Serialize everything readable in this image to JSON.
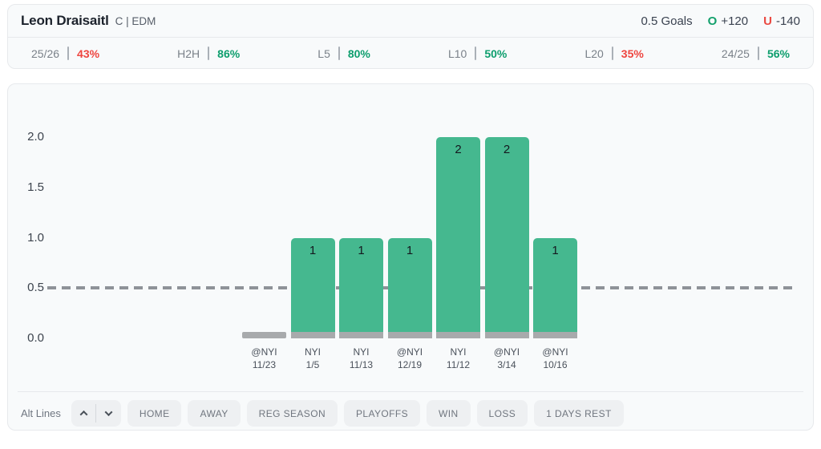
{
  "header": {
    "player": "Leon Draisaitl",
    "position_team": "C | EDM",
    "market": "0.5 Goals",
    "over_label": "O",
    "over_odds": "+120",
    "under_label": "U",
    "under_odds": "-140"
  },
  "stats": [
    {
      "label": "25/26",
      "value": "43%",
      "trend": "down"
    },
    {
      "label": "H2H",
      "value": "86%",
      "trend": "up"
    },
    {
      "label": "L5",
      "value": "80%",
      "trend": "up"
    },
    {
      "label": "L10",
      "value": "50%",
      "trend": "up"
    },
    {
      "label": "L20",
      "value": "35%",
      "trend": "down"
    },
    {
      "label": "24/25",
      "value": "56%",
      "trend": "up"
    }
  ],
  "chart_data": {
    "type": "bar",
    "categories": [
      {
        "opponent": "@NYI",
        "date": "11/23"
      },
      {
        "opponent": "NYI",
        "date": "1/5"
      },
      {
        "opponent": "NYI",
        "date": "11/13"
      },
      {
        "opponent": "@NYI",
        "date": "12/19"
      },
      {
        "opponent": "NYI",
        "date": "11/12"
      },
      {
        "opponent": "@NYI",
        "date": "3/14"
      },
      {
        "opponent": "@NYI",
        "date": "10/16"
      }
    ],
    "values": [
      0,
      1,
      1,
      1,
      2,
      2,
      1
    ],
    "line_value": 0.5,
    "ytick_labels": [
      "2.0",
      "1.5",
      "1.0",
      "0.5",
      "0.0"
    ],
    "ylim": [
      0,
      2.2
    ],
    "grid": false,
    "legend": false,
    "bar_color": "#45b88f",
    "bar_base_color": "#a8aaac",
    "line_color": "#8e9298"
  },
  "filters": {
    "alt_lines_label": "Alt Lines",
    "buttons": [
      "HOME",
      "AWAY",
      "REG SEASON",
      "PLAYOFFS",
      "WIN",
      "LOSS",
      "1 DAYS REST"
    ]
  },
  "colors": {
    "positive": "#0d9e6d",
    "negative": "#ee453f",
    "over_accent": "#13a06c",
    "under_accent": "#ea4a42"
  }
}
